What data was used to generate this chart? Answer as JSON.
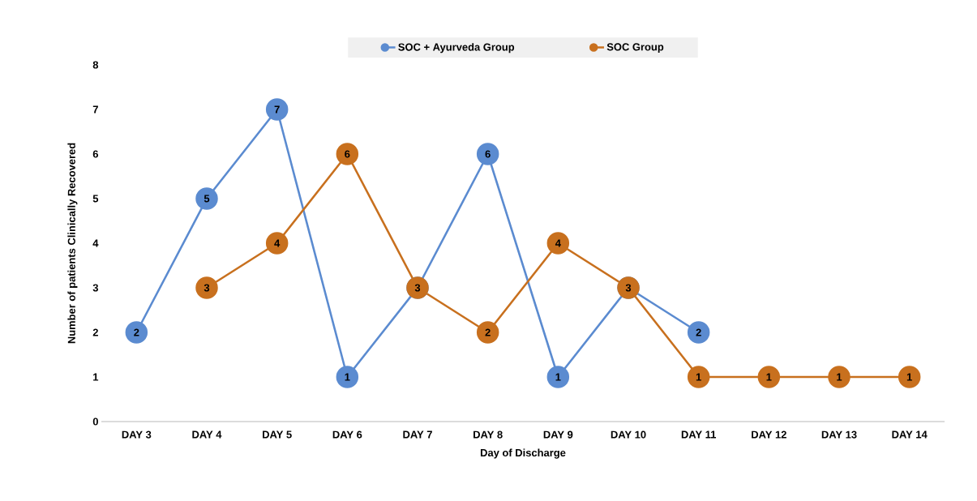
{
  "chart_data": {
    "type": "line",
    "xlabel": "Day of Discharge",
    "ylabel": "Number of patients Clinically Recovered",
    "categories": [
      "DAY 3",
      "DAY 4",
      "DAY 5",
      "DAY 6",
      "DAY 7",
      "DAY 8",
      "DAY 9",
      "DAY 10",
      "DAY 11",
      "DAY 12",
      "DAY 13",
      "DAY 14"
    ],
    "series": [
      {
        "name": "SOC + Ayurveda Group",
        "color": "#5b8bd0",
        "values": [
          2,
          5,
          7,
          1,
          3,
          6,
          1,
          3,
          2,
          null,
          null,
          null
        ],
        "value_labels": [
          "2",
          "5",
          "7",
          "1",
          null,
          "6",
          "1",
          null,
          "2",
          null,
          null,
          null
        ]
      },
      {
        "name": "SOC Group",
        "color": "#c8701e",
        "values": [
          null,
          3,
          4,
          6,
          3,
          2,
          4,
          3,
          1,
          1,
          1,
          1
        ],
        "value_labels": [
          null,
          "3",
          "4",
          "6",
          "3",
          "2",
          "4",
          "3",
          "1",
          "1",
          "1",
          "1"
        ]
      }
    ],
    "ylim": [
      0,
      8
    ],
    "yticks": [
      0,
      1,
      2,
      3,
      4,
      5,
      6,
      7,
      8
    ],
    "legend": "top",
    "marker": "circle",
    "line_style": "solid"
  }
}
